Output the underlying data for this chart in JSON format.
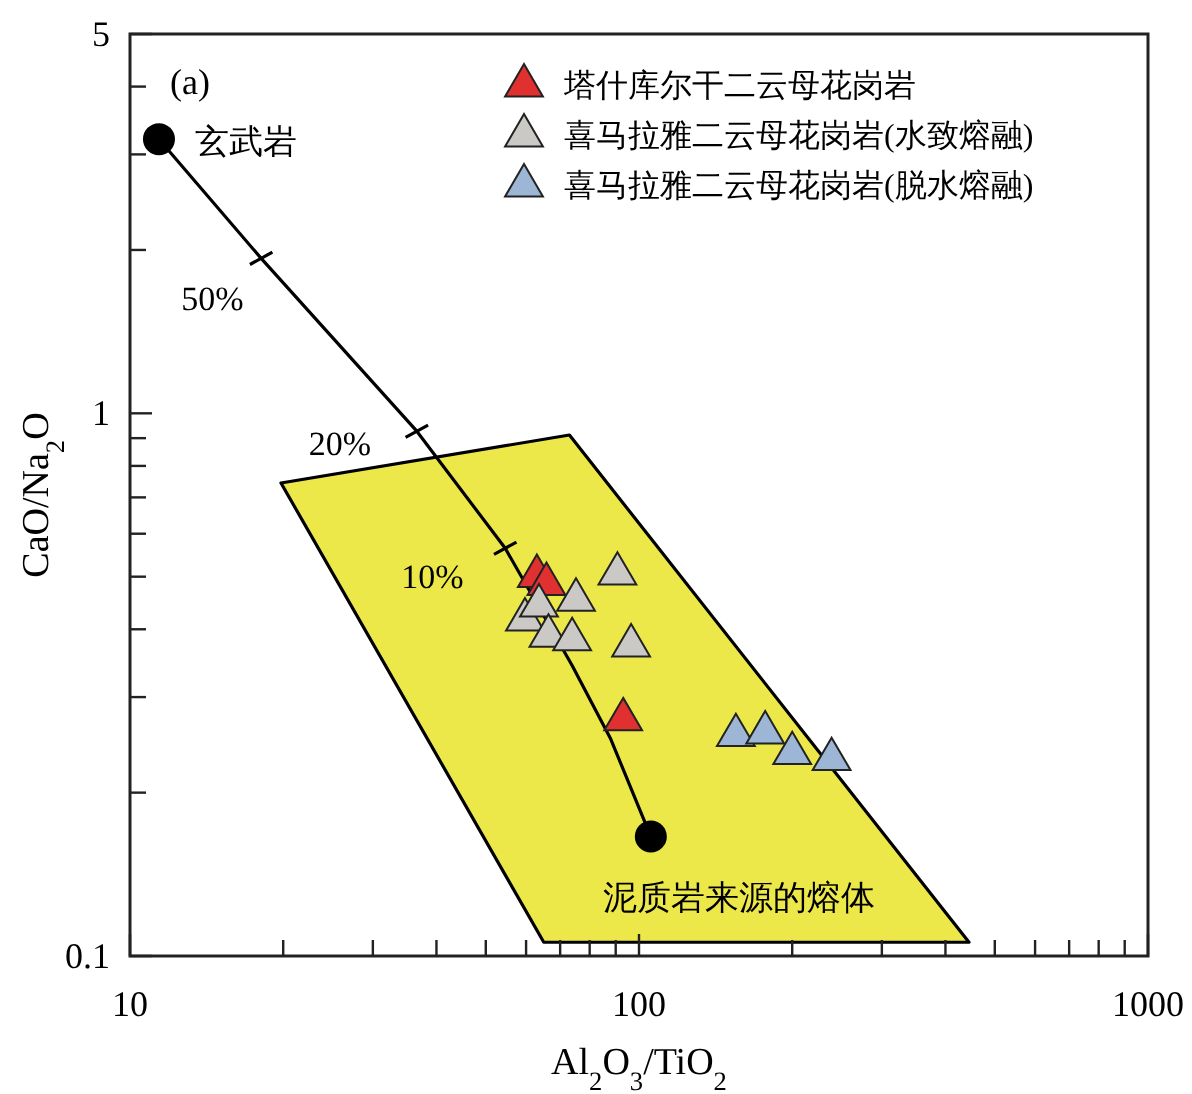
{
  "chart_data": {
    "type": "scatter",
    "xlabel": "Al$_{2}$O$_{3}$/TiO$_{2}$",
    "ylabel": "CaO/Na$_{2}$O",
    "log": "xy",
    "xlim": [
      10,
      1000
    ],
    "ylim": [
      0.1,
      5
    ],
    "xticks": [
      10,
      {
        "value": 20,
        "label": null
      },
      {
        "value": 30,
        "label": null
      },
      {
        "value": 40,
        "label": null
      },
      {
        "value": 50,
        "label": null
      },
      {
        "value": 60,
        "label": null
      },
      {
        "value": 70,
        "label": null
      },
      {
        "value": 80,
        "label": null
      },
      {
        "value": 90,
        "label": null
      },
      100,
      {
        "value": 200,
        "label": null
      },
      {
        "value": 300,
        "label": null
      },
      {
        "value": 400,
        "label": null
      },
      {
        "value": 500,
        "label": null
      },
      {
        "value": 600,
        "label": null
      },
      {
        "value": 700,
        "label": null
      },
      {
        "value": 800,
        "label": null
      },
      {
        "value": 900,
        "label": null
      },
      1000
    ],
    "yticks": [
      0.1,
      {
        "value": 0.2,
        "label": null
      },
      {
        "value": 0.3,
        "label": null
      },
      {
        "value": 0.4,
        "label": null
      },
      {
        "value": 0.5,
        "label": null
      },
      {
        "value": 0.6,
        "label": null
      },
      {
        "value": 0.7,
        "label": null
      },
      {
        "value": 0.8,
        "label": null
      },
      {
        "value": 0.9,
        "label": null
      },
      1,
      {
        "value": 2,
        "label": null
      },
      {
        "value": 3,
        "label": null
      },
      {
        "value": 4,
        "label": null
      },
      5
    ],
    "grid": false,
    "legend": "top right",
    "series": [
      {
        "type": "area",
        "color": "#ede84a",
        "x": [
          19.8,
          73,
          445,
          65,
          19.8
        ],
        "values": [
          0.744,
          0.912,
          0.106,
          0.106,
          0.744
        ]
      },
      {
        "type": "line",
        "color": "#000000",
        "marker": "none",
        "x": [
          11.4,
          18.1,
          36.6,
          54.6,
          73.9,
          88,
          105.5
        ],
        "values": [
          3.2,
          1.93,
          0.927,
          0.564,
          0.343,
          0.251,
          0.166
        ]
      },
      {
        "type": "scatter",
        "color": "#000000",
        "marker": "circle",
        "x": [
          11.4,
          105.5
        ],
        "values": [
          3.2,
          0.166
        ]
      },
      {
        "name": "塔什库尔干二云母花岗岩",
        "marker": "triangle",
        "color": "#e03030",
        "x": [
          63.0,
          65.8,
          93.1
        ],
        "values": [
          0.509,
          0.492,
          0.277
        ]
      },
      {
        "name": "喜马拉雅二云母花岗岩(水致熔融)",
        "marker": "triangle",
        "color": "#cbc9c6",
        "x": [
          90.7,
          75.2,
          59.7,
          63.6,
          66.4,
          73.9,
          96.5
        ],
        "values": [
          0.514,
          0.46,
          0.423,
          0.449,
          0.395,
          0.389,
          0.379
        ]
      },
      {
        "name": "喜马拉雅二云母花岗岩(脱水熔融)",
        "marker": "triangle",
        "color": "#9db6d6",
        "x": [
          155,
          177,
          200,
          239
        ],
        "values": [
          0.259,
          0.262,
          0.24,
          0.234
        ]
      }
    ],
    "annotations": [
      "(a)",
      {
        "text": "玄武岩",
        "x": 11.4,
        "y": 3.2
      },
      {
        "text": "50%",
        "x": 18.1,
        "y": 1.93
      },
      {
        "text": "20%",
        "x": 36.6,
        "y": 0.927
      },
      {
        "text": "10%",
        "x": 54.6,
        "y": 0.564
      },
      {
        "text": "泥质岩来源的熔体",
        "x": 105.5,
        "y": 0.166
      }
    ]
  }
}
